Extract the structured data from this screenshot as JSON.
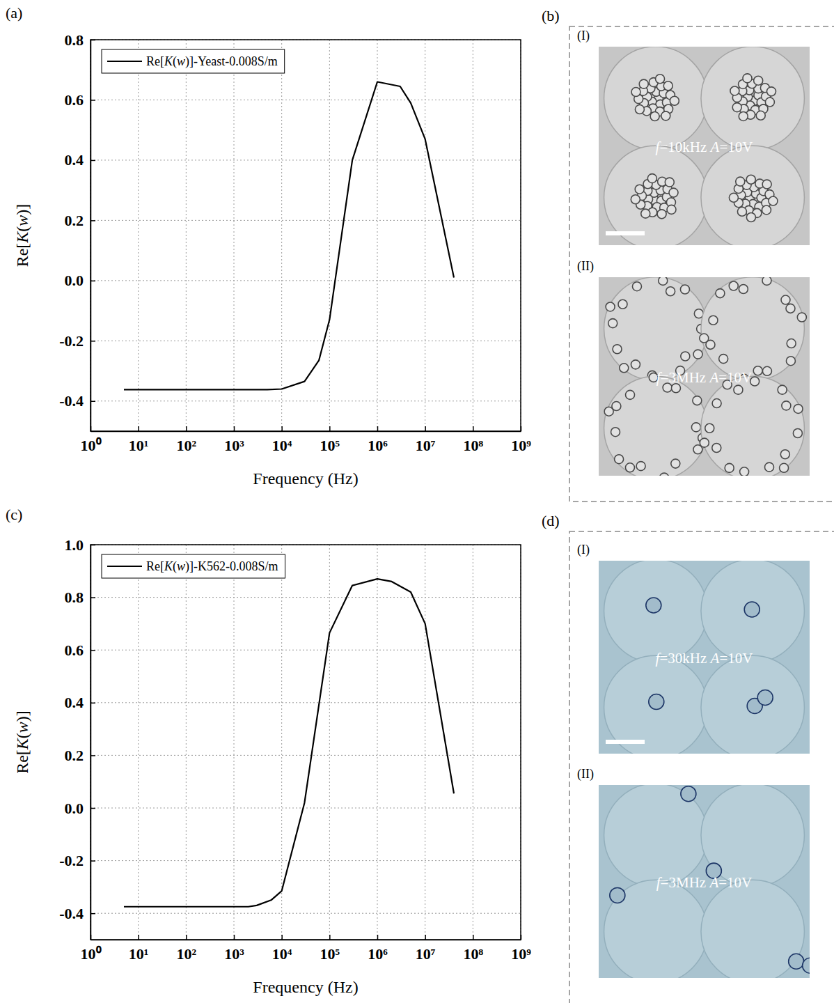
{
  "chart_data": [
    {
      "type": "line",
      "panel_label": "(a)",
      "x_label": "Frequency (Hz)",
      "y_label": "Re[K(w)]",
      "log": "x",
      "grid": true,
      "legend": "top-left",
      "xlim": [
        1,
        1000000000
      ],
      "xticks": [
        {
          "value": 1,
          "label": "10⁰"
        },
        {
          "value": 10,
          "label": "10¹"
        },
        {
          "value": 100,
          "label": "10²"
        },
        {
          "value": 1000,
          "label": "10³"
        },
        {
          "value": 10000,
          "label": "10⁴"
        },
        {
          "value": 100000,
          "label": "10⁵"
        },
        {
          "value": 1000000,
          "label": "10⁶"
        },
        {
          "value": 10000000,
          "label": "10⁷"
        },
        {
          "value": 100000000,
          "label": "10⁸"
        },
        {
          "value": 1000000000,
          "label": "10⁹"
        }
      ],
      "ylim": [
        -0.5,
        0.8
      ],
      "yticks": [
        -0.4,
        -0.2,
        {
          "value": 0,
          "label": "0.0"
        },
        0.2,
        0.4,
        0.6,
        0.8
      ],
      "x": [
        5,
        5000,
        10000,
        30000,
        60000,
        100000,
        300000,
        1000000,
        3000000,
        5000000,
        10000000,
        40000000
      ],
      "series": [
        {
          "name": "Re[K(w)]-Yeast-0.008S/m",
          "color": "#000000",
          "values": [
            -0.362,
            -0.362,
            -0.36,
            -0.335,
            -0.265,
            -0.13,
            0.4,
            0.66,
            0.645,
            0.59,
            0.47,
            0.01
          ]
        }
      ]
    },
    {
      "type": "line",
      "panel_label": "(c)",
      "x_label": "Frequency (Hz)",
      "y_label": "Re[K(w)]",
      "log": "x",
      "grid": true,
      "legend": "top-left",
      "xlim": [
        1,
        1000000000
      ],
      "xticks": [
        {
          "value": 1,
          "label": "10⁰"
        },
        {
          "value": 10,
          "label": "10¹"
        },
        {
          "value": 100,
          "label": "10²"
        },
        {
          "value": 1000,
          "label": "10³"
        },
        {
          "value": 10000,
          "label": "10⁴"
        },
        {
          "value": 100000,
          "label": "10⁵"
        },
        {
          "value": 1000000,
          "label": "10⁶"
        },
        {
          "value": 10000000,
          "label": "10⁷"
        },
        {
          "value": 100000000,
          "label": "10⁸"
        },
        {
          "value": 1000000000,
          "label": "10⁹"
        }
      ],
      "ylim": [
        -0.5,
        1.0
      ],
      "yticks": [
        -0.4,
        -0.2,
        {
          "value": 0,
          "label": "0.0"
        },
        0.2,
        0.4,
        0.6,
        0.8,
        {
          "value": 1,
          "label": "1.0"
        }
      ],
      "x": [
        5,
        2000,
        3000,
        6000,
        10000,
        30000,
        100000,
        300000,
        1000000,
        2000000,
        5000000,
        10000000,
        40000000
      ],
      "series": [
        {
          "name": "Re[K(w)]-K562-0.008S/m",
          "color": "#000000",
          "values": [
            -0.375,
            -0.375,
            -0.37,
            -0.35,
            -0.315,
            0.02,
            0.665,
            0.845,
            0.87,
            0.86,
            0.82,
            0.7,
            0.055
          ]
        }
      ]
    }
  ],
  "images": [
    {
      "panel_label": "(b)",
      "frames": [
        {
          "label": "(I)",
          "caption": "f=10kHz A=10V"
        },
        {
          "label": "(II)",
          "caption": "f=3MHz A=10V"
        }
      ]
    },
    {
      "panel_label": "(d)",
      "frames": [
        {
          "label": "(I)",
          "caption": "f=30kHz A=10V"
        },
        {
          "label": "(II)",
          "caption": "f=3MHz A=10V"
        }
      ]
    }
  ]
}
